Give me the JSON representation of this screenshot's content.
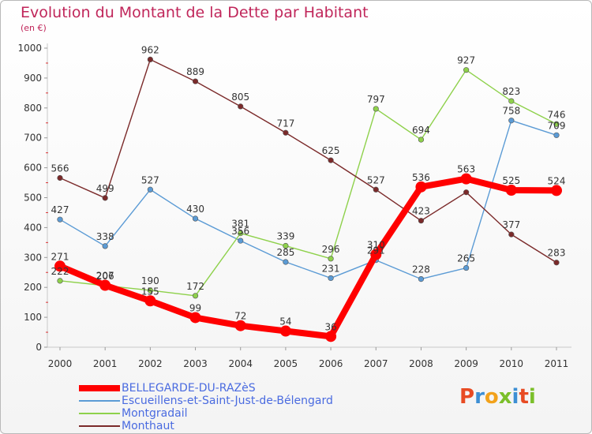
{
  "title": "Evolution du Montant de la Dette par Habitant",
  "unit_label": "(en €)",
  "brand": {
    "text": "Proxiti",
    "letters": [
      {
        "ch": "P",
        "color": "#e84b23"
      },
      {
        "ch": "r",
        "color": "#3d8fd4"
      },
      {
        "ch": "o",
        "color": "#f2a21b"
      },
      {
        "ch": "x",
        "color": "#7bbf2a"
      },
      {
        "ch": "i",
        "color": "#3d8fd4"
      },
      {
        "ch": "t",
        "color": "#e84b23"
      },
      {
        "ch": "i",
        "color": "#7bbf2a"
      }
    ]
  },
  "chart_data": {
    "type": "line",
    "title": "Evolution du Montant de la Dette par Habitant",
    "ylabel": "(en €)",
    "xlabel": "",
    "ylim": [
      0,
      1000
    ],
    "yticks": [
      0,
      100,
      200,
      300,
      400,
      500,
      600,
      700,
      800,
      900,
      1000
    ],
    "categories": [
      "2000",
      "2001",
      "2002",
      "2003",
      "2004",
      "2005",
      "2006",
      "2007",
      "2008",
      "2009",
      "2010",
      "2011"
    ],
    "grid": false,
    "legend_position": "bottom-left",
    "series": [
      {
        "name": "BELLEGARDE-DU-RAZèS",
        "color": "#ff0000",
        "emphasis": true,
        "values": [
          271,
          207,
          155,
          99,
          72,
          54,
          36,
          310,
          536,
          563,
          525,
          524
        ]
      },
      {
        "name": "Escueillens-et-Saint-Just-de-Bélengard",
        "color": "#5b9bd5",
        "emphasis": false,
        "values": [
          427,
          338,
          527,
          430,
          356,
          285,
          231,
          291,
          228,
          265,
          758,
          709
        ]
      },
      {
        "name": "Montgradail",
        "color": "#8ed14b",
        "emphasis": false,
        "values": [
          222,
          206,
          190,
          172,
          381,
          339,
          296,
          797,
          694,
          927,
          823,
          746
        ]
      },
      {
        "name": "Monthaut",
        "color": "#7b2a2a",
        "emphasis": false,
        "values": [
          566,
          499,
          962,
          889,
          805,
          717,
          625,
          527,
          423,
          518,
          377,
          283
        ]
      }
    ],
    "data_labels": [
      {
        "series": 0,
        "index": 0,
        "text": "271"
      },
      {
        "series": 0,
        "index": 1,
        "text": "207"
      },
      {
        "series": 0,
        "index": 2,
        "text": "155"
      },
      {
        "series": 0,
        "index": 3,
        "text": "99"
      },
      {
        "series": 0,
        "index": 4,
        "text": "72"
      },
      {
        "series": 0,
        "index": 5,
        "text": "54"
      },
      {
        "series": 0,
        "index": 6,
        "text": "36"
      },
      {
        "series": 0,
        "index": 7,
        "text": "310"
      },
      {
        "series": 0,
        "index": 8,
        "text": "536"
      },
      {
        "series": 0,
        "index": 9,
        "text": "563"
      },
      {
        "series": 0,
        "index": 10,
        "text": "525"
      },
      {
        "series": 0,
        "index": 11,
        "text": "524"
      },
      {
        "series": 1,
        "index": 0,
        "text": "427"
      },
      {
        "series": 1,
        "index": 1,
        "text": "338"
      },
      {
        "series": 1,
        "index": 2,
        "text": "527"
      },
      {
        "series": 1,
        "index": 3,
        "text": "430"
      },
      {
        "series": 1,
        "index": 4,
        "text": "356"
      },
      {
        "series": 1,
        "index": 5,
        "text": "285"
      },
      {
        "series": 1,
        "index": 6,
        "text": "231"
      },
      {
        "series": 1,
        "index": 7,
        "text": "291"
      },
      {
        "series": 1,
        "index": 8,
        "text": "228"
      },
      {
        "series": 1,
        "index": 9,
        "text": "265"
      },
      {
        "series": 1,
        "index": 10,
        "text": "758"
      },
      {
        "series": 1,
        "index": 11,
        "text": "709"
      },
      {
        "series": 2,
        "index": 0,
        "text": "222"
      },
      {
        "series": 2,
        "index": 1,
        "text": "206"
      },
      {
        "series": 2,
        "index": 2,
        "text": "190"
      },
      {
        "series": 2,
        "index": 3,
        "text": "172"
      },
      {
        "series": 2,
        "index": 4,
        "text": "381"
      },
      {
        "series": 2,
        "index": 5,
        "text": "339"
      },
      {
        "series": 2,
        "index": 6,
        "text": "296"
      },
      {
        "series": 2,
        "index": 7,
        "text": "797"
      },
      {
        "series": 2,
        "index": 8,
        "text": "694"
      },
      {
        "series": 2,
        "index": 9,
        "text": "927"
      },
      {
        "series": 2,
        "index": 10,
        "text": "823"
      },
      {
        "series": 2,
        "index": 11,
        "text": "746"
      },
      {
        "series": 3,
        "index": 0,
        "text": "566"
      },
      {
        "series": 3,
        "index": 1,
        "text": "499"
      },
      {
        "series": 3,
        "index": 2,
        "text": "962"
      },
      {
        "series": 3,
        "index": 3,
        "text": "889"
      },
      {
        "series": 3,
        "index": 4,
        "text": "805"
      },
      {
        "series": 3,
        "index": 5,
        "text": "717"
      },
      {
        "series": 3,
        "index": 6,
        "text": "625"
      },
      {
        "series": 3,
        "index": 7,
        "text": "527"
      },
      {
        "series": 3,
        "index": 8,
        "text": "423"
      },
      {
        "series": 3,
        "index": 10,
        "text": "377"
      },
      {
        "series": 3,
        "index": 11,
        "text": "283"
      }
    ]
  }
}
